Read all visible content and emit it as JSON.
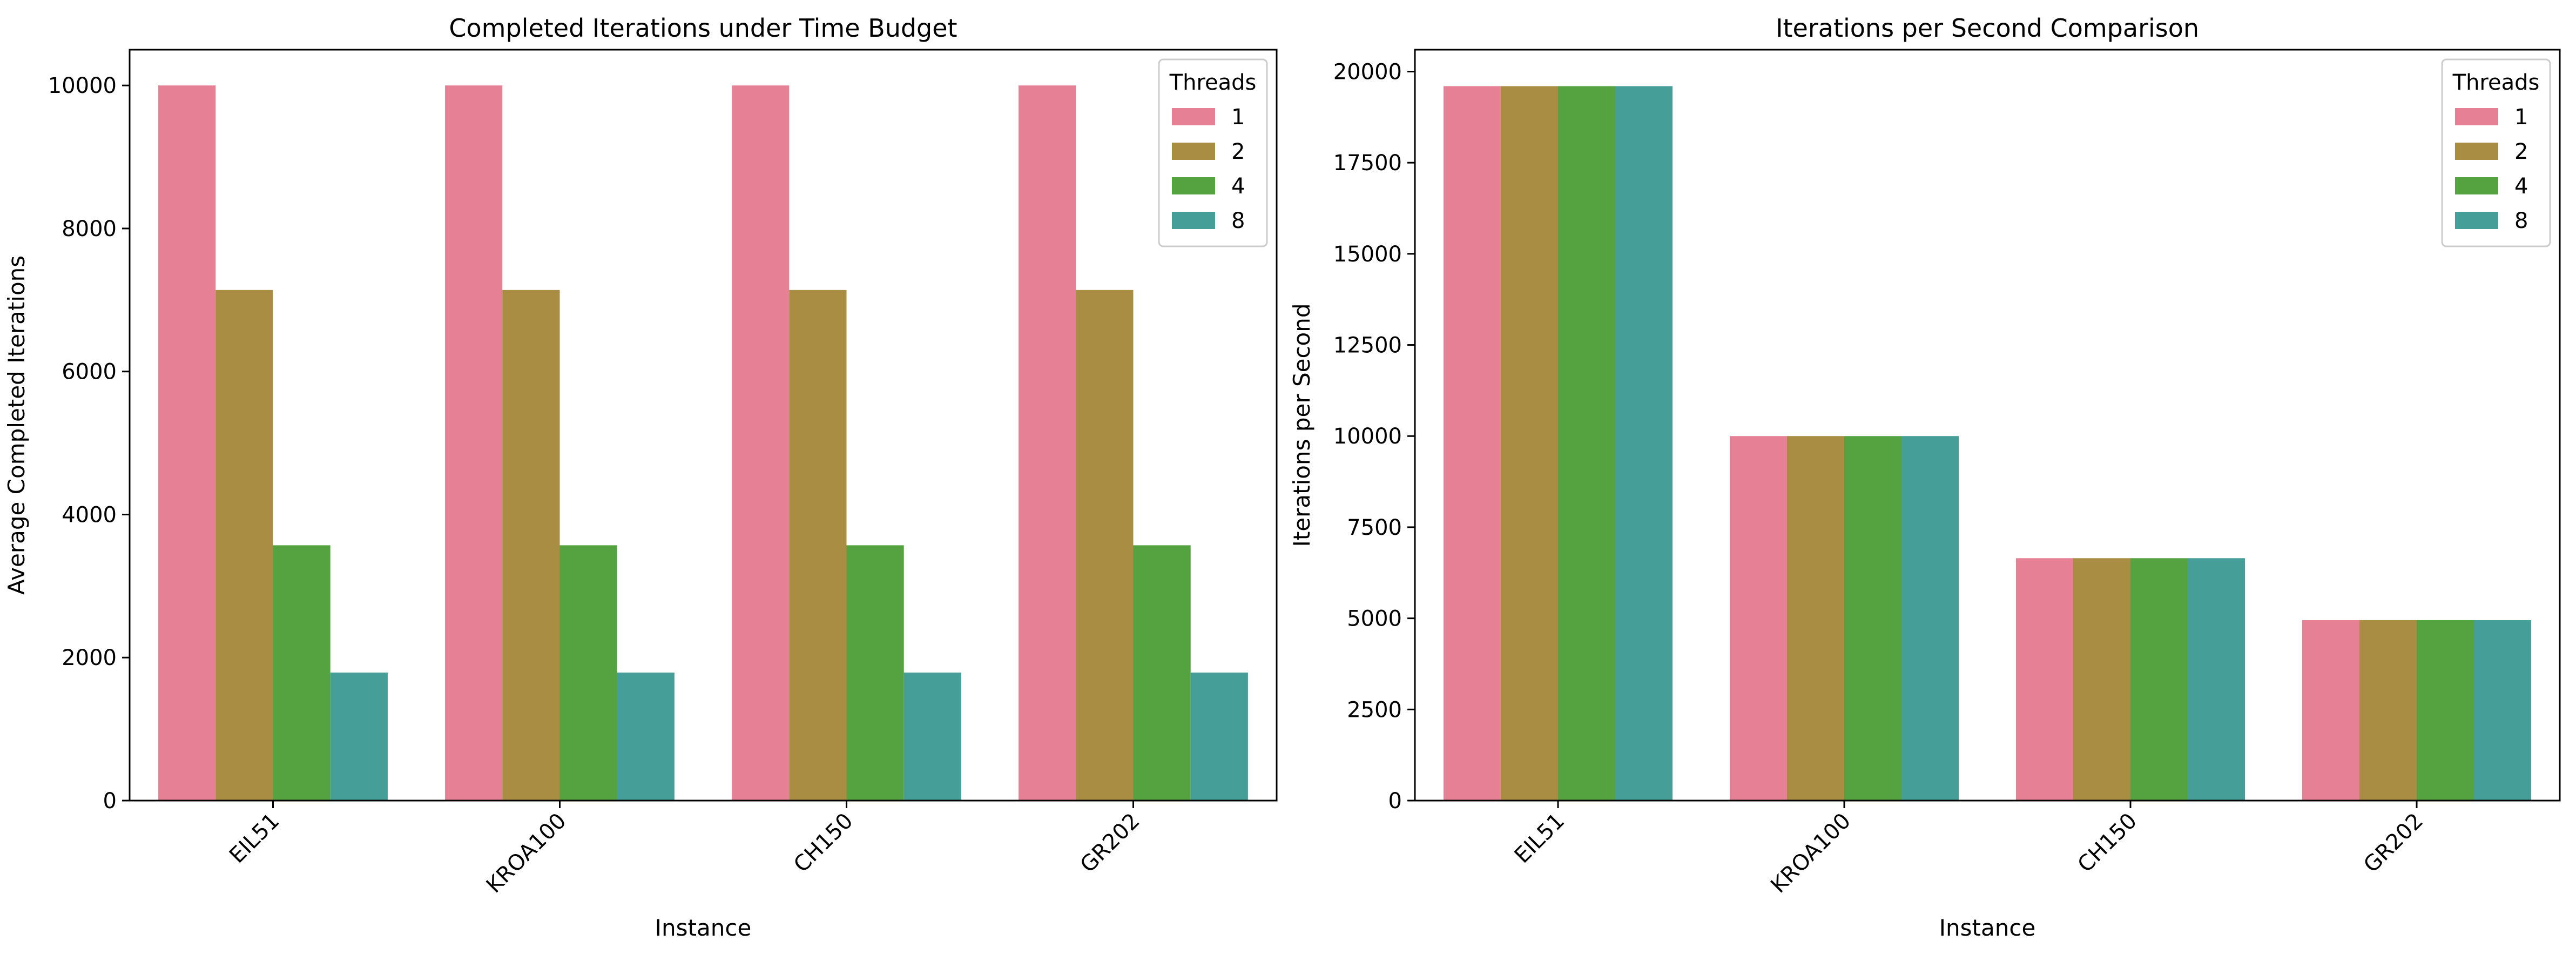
{
  "legend_colors": {
    "1": "#e68094",
    "2": "#a88d42",
    "4": "#55a240",
    "8": "#469e99"
  },
  "chart_data": [
    {
      "type": "bar",
      "title": "Completed Iterations under Time Budget",
      "xlabel": "Instance",
      "ylabel": "Average Completed Iterations",
      "categories": [
        "EIL51",
        "KROA100",
        "CH150",
        "GR202"
      ],
      "ylim": [
        0,
        10500
      ],
      "yticks": [
        0,
        2000,
        4000,
        6000,
        8000,
        10000
      ],
      "ytick_labels": [
        "0",
        "2000",
        "4000",
        "6000",
        "8000",
        "10000"
      ],
      "legend": {
        "title": "Threads",
        "placement": "top-right"
      },
      "grid": false,
      "series": [
        {
          "name": "1",
          "color": "#e68094",
          "values": [
            10000,
            10000,
            10000,
            10000
          ]
        },
        {
          "name": "2",
          "color": "#a88d42",
          "values": [
            7140,
            7140,
            7140,
            7140
          ]
        },
        {
          "name": "4",
          "color": "#55a240",
          "values": [
            3570,
            3570,
            3570,
            3570
          ]
        },
        {
          "name": "8",
          "color": "#469e99",
          "values": [
            1790,
            1790,
            1790,
            1790
          ]
        }
      ]
    },
    {
      "type": "bar",
      "title": "Iterations per Second Comparison",
      "xlabel": "Instance",
      "ylabel": "Iterations per Second",
      "categories": [
        "EIL51",
        "KROA100",
        "CH150",
        "GR202"
      ],
      "ylim": [
        0,
        20600
      ],
      "yticks": [
        0,
        2500,
        5000,
        7500,
        10000,
        12500,
        15000,
        17500,
        20000
      ],
      "ytick_labels": [
        "0",
        "2500",
        "5000",
        "7500",
        "10000",
        "12500",
        "15000",
        "17500",
        "20000"
      ],
      "legend": {
        "title": "Threads",
        "placement": "top-right"
      },
      "grid": false,
      "series": [
        {
          "name": "1",
          "color": "#e68094",
          "values": [
            19600,
            10000,
            6650,
            4950
          ]
        },
        {
          "name": "2",
          "color": "#a88d42",
          "values": [
            19600,
            10000,
            6650,
            4950
          ]
        },
        {
          "name": "4",
          "color": "#55a240",
          "values": [
            19600,
            10000,
            6650,
            4950
          ]
        },
        {
          "name": "8",
          "color": "#469e99",
          "values": [
            19600,
            10000,
            6650,
            4950
          ]
        }
      ]
    }
  ]
}
